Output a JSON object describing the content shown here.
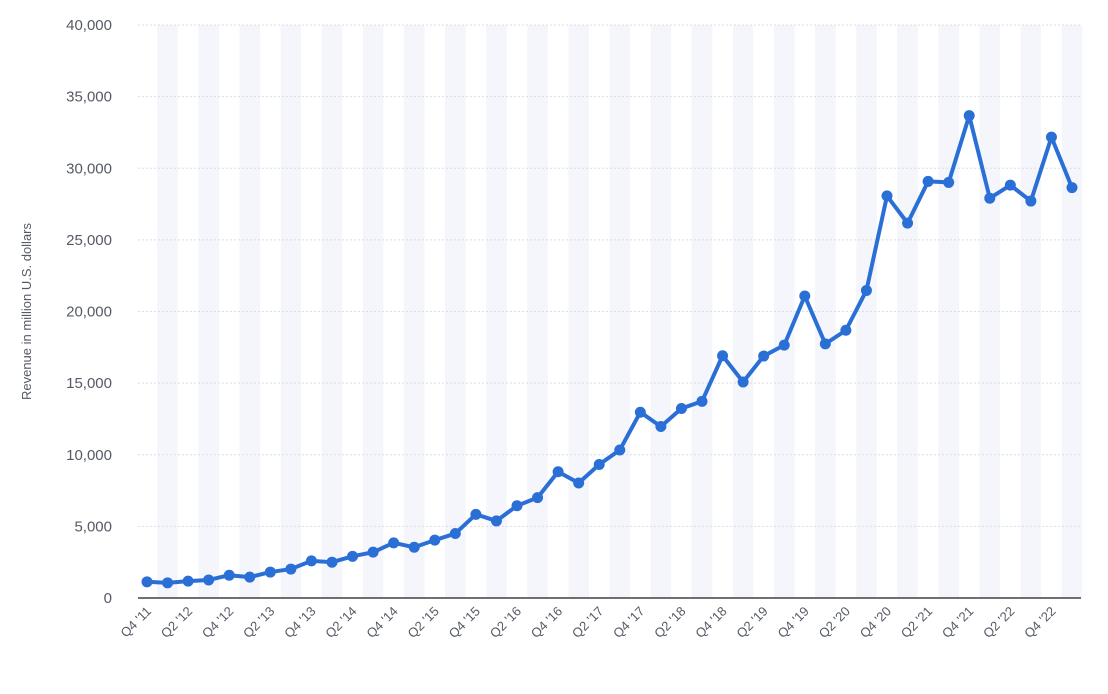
{
  "chart_data": {
    "type": "line",
    "title": "",
    "xlabel": "",
    "ylabel": "Revenue in million U.S. dollars",
    "ylim": [
      0,
      40000
    ],
    "yticks": [
      0,
      5000,
      10000,
      15000,
      20000,
      25000,
      30000,
      35000,
      40000
    ],
    "ytick_labels": [
      "0",
      "5,000",
      "10,000",
      "15,000",
      "20,000",
      "25,000",
      "30,000",
      "35,000",
      "40,000"
    ],
    "grid": true,
    "line_color": "#2a6fd6",
    "categories": [
      "Q4 '11",
      "Q1 '12",
      "Q2 '12",
      "Q3 '12",
      "Q4 '12",
      "Q1 '13",
      "Q2 '13",
      "Q3 '13",
      "Q4 '13",
      "Q1 '14",
      "Q2 '14",
      "Q3 '14",
      "Q4 '14",
      "Q1 '15",
      "Q2 '15",
      "Q3 '15",
      "Q4 '15",
      "Q1 '16",
      "Q2 '16",
      "Q3 '16",
      "Q4 '16",
      "Q1 '17",
      "Q2 '17",
      "Q3 '17",
      "Q4 '17",
      "Q1 '18",
      "Q2 '18",
      "Q3 '18",
      "Q4 '18",
      "Q1 '19",
      "Q2 '19",
      "Q3 '19",
      "Q4 '19",
      "Q1 '20",
      "Q2 '20",
      "Q3 '20",
      "Q4 '20",
      "Q1 '21",
      "Q2 '21",
      "Q3 '21",
      "Q4 '21",
      "Q1 '22",
      "Q2 '22",
      "Q3 '22",
      "Q4 '22",
      "Q1 '23"
    ],
    "xtick_labels_shown": [
      "Q4 '11",
      "Q2 '12",
      "Q4 '12",
      "Q2 '13",
      "Q4 '13",
      "Q2 '14",
      "Q4 '14",
      "Q2 '15",
      "Q4 '15",
      "Q2 '16",
      "Q4 '16",
      "Q2 '17",
      "Q4 '17",
      "Q2 '18",
      "Q4 '18",
      "Q2 '19",
      "Q4 '19",
      "Q2 '20",
      "Q4 '20",
      "Q2 '21",
      "Q4 '21",
      "Q2 '22",
      "Q4 '22"
    ],
    "series": [
      {
        "values": [
          1130,
          1060,
          1180,
          1260,
          1590,
          1460,
          1810,
          2020,
          2590,
          2500,
          2910,
          3200,
          3850,
          3540,
          4040,
          4500,
          5840,
          5380,
          6440,
          7010,
          8810,
          8030,
          9320,
          10330,
          12970,
          11970,
          13230,
          13730,
          16910,
          15080,
          16890,
          17650,
          21080,
          17740,
          18690,
          21470,
          28070,
          26170,
          29080,
          29010,
          33670,
          27910,
          28820,
          27710,
          32170,
          28650
        ]
      }
    ]
  }
}
